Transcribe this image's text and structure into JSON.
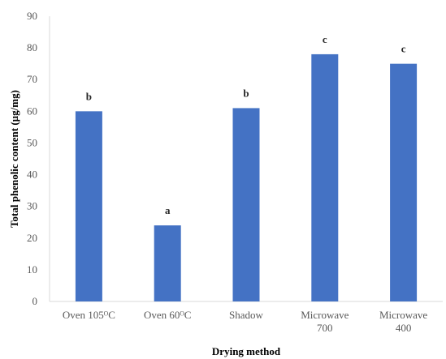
{
  "chart_data": {
    "type": "bar",
    "title": "",
    "xlabel": "Drying method",
    "ylabel": "Total phenolic content (µg/mg)",
    "categories": [
      [
        "Oven 105ᴼC"
      ],
      [
        "Oven 60ᴼC"
      ],
      [
        "Shadow"
      ],
      [
        "Microwave",
        "700"
      ],
      [
        "Microwave",
        "400"
      ]
    ],
    "values": [
      60,
      24,
      61,
      78,
      75
    ],
    "significance_labels": [
      "b",
      "a",
      "b",
      "c",
      "c"
    ],
    "ylim": [
      0,
      90
    ],
    "yticks": [
      0,
      10,
      20,
      30,
      40,
      50,
      60,
      70,
      80,
      90
    ],
    "grid": false,
    "legend": "none",
    "colors": {
      "bar": "#4472C4",
      "axis": "#D9D9D9"
    }
  }
}
